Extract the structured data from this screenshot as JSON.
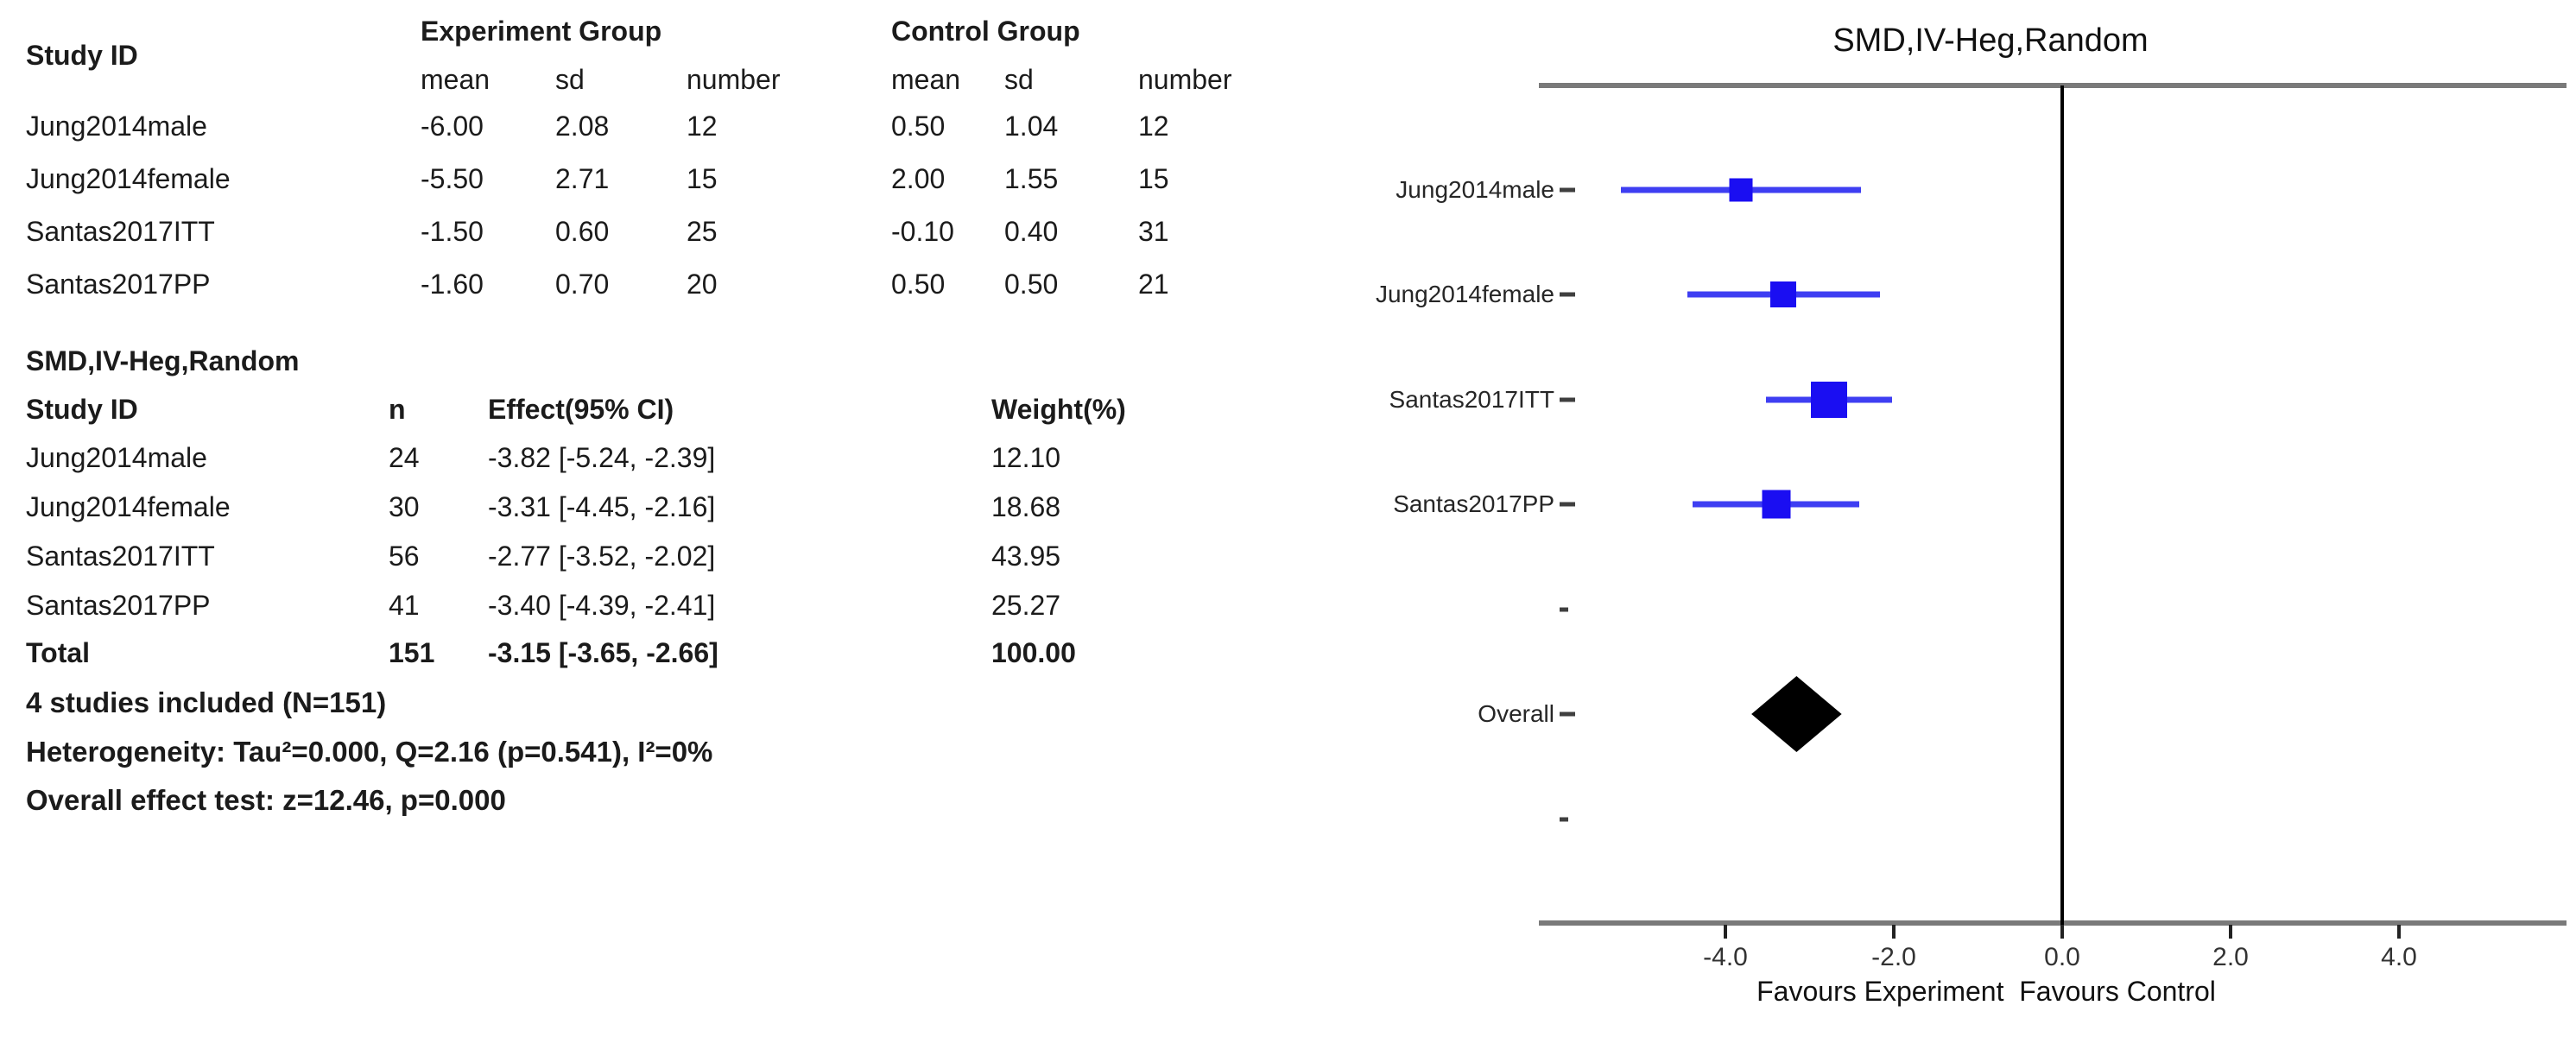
{
  "left_panel": {
    "group_table": {
      "study_id_header": "Study ID",
      "experiment_group_header": "Experiment Group",
      "control_group_header": "Control Group",
      "sub_headers": [
        "mean",
        "sd",
        "number",
        "mean",
        "sd",
        "number"
      ],
      "rows": [
        {
          "study": "Jung2014male",
          "exp_mean": "-6.00",
          "exp_sd": "2.08",
          "exp_n": "12",
          "ctrl_mean": "0.50",
          "ctrl_sd": "1.04",
          "ctrl_n": "12"
        },
        {
          "study": "Jung2014female",
          "exp_mean": "-5.50",
          "exp_sd": "2.71",
          "exp_n": "15",
          "ctrl_mean": "2.00",
          "ctrl_sd": "1.55",
          "ctrl_n": "15"
        },
        {
          "study": "Santas2017ITT",
          "exp_mean": "-1.50",
          "exp_sd": "0.60",
          "exp_n": "25",
          "ctrl_mean": "-0.10",
          "ctrl_sd": "0.40",
          "ctrl_n": "31"
        },
        {
          "study": "Santas2017PP",
          "exp_mean": "-1.60",
          "exp_sd": "0.70",
          "exp_n": "20",
          "ctrl_mean": "0.50",
          "ctrl_sd": "0.50",
          "ctrl_n": "21"
        }
      ]
    },
    "effect_table": {
      "title": "SMD,IV-Heg,Random",
      "headers": {
        "study": "Study ID",
        "n": "n",
        "effect": "Effect(95% CI)",
        "weight": "Weight(%)"
      },
      "rows": [
        {
          "study": "Jung2014male",
          "n": "24",
          "effect": "-3.82 [-5.24, -2.39]",
          "weight": "12.10"
        },
        {
          "study": "Jung2014female",
          "n": "30",
          "effect": "-3.31 [-4.45, -2.16]",
          "weight": "18.68"
        },
        {
          "study": "Santas2017ITT",
          "n": "56",
          "effect": "-2.77 [-3.52, -2.02]",
          "weight": "43.95"
        },
        {
          "study": "Santas2017PP",
          "n": "41",
          "effect": "-3.40 [-4.39, -2.41]",
          "weight": "25.27"
        }
      ],
      "total": {
        "study": "Total",
        "n": "151",
        "effect": "-3.15 [-3.65, -2.66]",
        "weight": "100.00"
      }
    },
    "stats": {
      "studies_line": "4 studies included (N=151)",
      "heterogeneity_line": "Heterogeneity: Tau²=0.000, Q=2.16 (p=0.541), I²=0%",
      "effect_test_line": "Overall effect test: z=12.46, p=0.000"
    }
  },
  "chart_data": {
    "type": "forest",
    "title": "SMD,IV-Heg,Random",
    "xlabel": "Favours Experiment  Favours Control",
    "x_ticks": [
      -4.0,
      -2.0,
      0.0,
      2.0,
      4.0
    ],
    "xlim": [
      -6.2,
      6.0
    ],
    "zero_line_at": 0.0,
    "grid": false,
    "studies": [
      {
        "label": "Jung2014male",
        "estimate": -3.82,
        "ci_low": -5.24,
        "ci_high": -2.39,
        "weight_pct": 12.1
      },
      {
        "label": "Jung2014female",
        "estimate": -3.31,
        "ci_low": -4.45,
        "ci_high": -2.16,
        "weight_pct": 18.68
      },
      {
        "label": "Santas2017ITT",
        "estimate": -2.77,
        "ci_low": -3.52,
        "ci_high": -2.02,
        "weight_pct": 43.95
      },
      {
        "label": "Santas2017PP",
        "estimate": -3.4,
        "ci_low": -4.39,
        "ci_high": -2.41,
        "weight_pct": 25.27
      }
    ],
    "overall": {
      "label": "Overall",
      "estimate": -3.15,
      "ci_low": -3.65,
      "ci_high": -2.66,
      "weight_pct": 100.0
    },
    "colors": {
      "study_marker": "#1a0ef2",
      "ci_line": "#3e3ef2",
      "overall_diamond": "#000000",
      "axis_gray": "#7a7a7a"
    }
  }
}
